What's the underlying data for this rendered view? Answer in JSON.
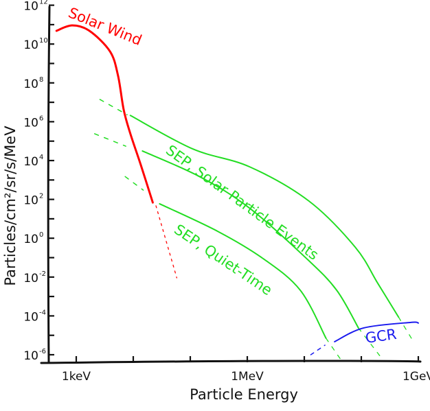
{
  "chart_data": {
    "type": "line",
    "title": "",
    "xlabel": "Particle Energy",
    "ylabel": "Particles/cm²/sr/s/MeV",
    "xscale": "log",
    "yscale": "log",
    "x_unit": "MeV",
    "xlim": [
      0.00028,
      1100
    ],
    "ylim": [
      4e-07,
      1000000000000.0
    ],
    "grid": false,
    "legend": "none (curves labeled inline)",
    "x_ticks": [
      {
        "value": 0.001,
        "label": "1keV"
      },
      {
        "value": 0.01,
        "label": ""
      },
      {
        "value": 0.1,
        "label": ""
      },
      {
        "value": 1,
        "label": "1MeV"
      },
      {
        "value": 10,
        "label": ""
      },
      {
        "value": 100,
        "label": ""
      },
      {
        "value": 1000,
        "label": "1GeV"
      }
    ],
    "y_ticks": [
      {
        "exp": -6,
        "label": "10",
        "sup": "-6"
      },
      {
        "exp": -5,
        "label": "",
        "sup": ""
      },
      {
        "exp": -4,
        "label": "10",
        "sup": "-4"
      },
      {
        "exp": -3,
        "label": "",
        "sup": ""
      },
      {
        "exp": -2,
        "label": "10",
        "sup": "-2"
      },
      {
        "exp": -1,
        "label": "",
        "sup": ""
      },
      {
        "exp": 0,
        "label": "10",
        "sup": "0"
      },
      {
        "exp": 1,
        "label": "",
        "sup": ""
      },
      {
        "exp": 2,
        "label": "10",
        "sup": "2"
      },
      {
        "exp": 3,
        "label": "",
        "sup": ""
      },
      {
        "exp": 4,
        "label": "10",
        "sup": "4"
      },
      {
        "exp": 5,
        "label": "",
        "sup": ""
      },
      {
        "exp": 6,
        "label": "10",
        "sup": "6"
      },
      {
        "exp": 7,
        "label": "",
        "sup": ""
      },
      {
        "exp": 8,
        "label": "10",
        "sup": "8"
      },
      {
        "exp": 9,
        "label": "",
        "sup": ""
      },
      {
        "exp": 10,
        "label": "10",
        "sup": "10"
      },
      {
        "exp": 11,
        "label": "",
        "sup": ""
      },
      {
        "exp": 12,
        "label": "10",
        "sup": "12"
      }
    ],
    "series": [
      {
        "name": "Solar Wind",
        "color": "#ff0000",
        "points": [
          [
            0.00045,
            48000000000.0
          ],
          [
            0.00085,
            91000000000.0
          ],
          [
            0.0017,
            48000000000.0
          ],
          [
            0.0039,
            4200000000.0
          ],
          [
            0.0054,
            240000000.0
          ],
          [
            0.0068,
            4100000.0
          ],
          [
            0.0089,
            240000.0
          ],
          [
            0.0135,
            6200.0
          ],
          [
            0.022,
            69
          ]
        ],
        "extrapolated": [
          [
            0.025,
            47
          ],
          [
            0.058,
            0.0091
          ]
        ]
      },
      {
        "name": "SEP, Solar Particle Events",
        "color": "#22dd22",
        "upper_bound": {
          "lead_in": [
            [
              0.0026,
              14000000.0
            ],
            [
              0.0078,
              2300000.0
            ]
          ],
          "points": [
            [
              0.0089,
              2100000.0
            ],
            [
              0.11,
              40000.0
            ],
            [
              1.09,
              4800.0
            ],
            [
              12,
              83
            ],
            [
              78,
              0.35
            ],
            [
              195,
              0.0047
            ],
            [
              450,
              8.7e-05
            ]
          ],
          "tail": [
            [
              450,
              8.7e-05
            ],
            [
              850,
              4e-06
            ]
          ]
        },
        "lower_bound": {
          "lead_in": [
            [
              0.0021,
              240000.0
            ],
            [
              0.0074,
              55000.0
            ]
          ],
          "points": [
            [
              0.0145,
              31000.0
            ],
            [
              0.145,
              1500.0
            ],
            [
              1.09,
              36
            ],
            [
              11,
              0.089
            ],
            [
              37,
              0.0021
            ],
            [
              89,
              2.4e-05
            ]
          ],
          "tail": [
            [
              89,
              2.4e-05
            ],
            [
              210,
              9e-07
            ]
          ]
        }
      },
      {
        "name": "SEP, Quiet-Time",
        "color": "#22dd22",
        "lead_in": [
          [
            0.0072,
            1500.0
          ],
          [
            0.015,
            300
          ]
        ],
        "points": [
          [
            0.029,
            59
          ],
          [
            0.3,
            2.3
          ],
          [
            1.9,
            0.089
          ],
          [
            8.5,
            0.0021
          ],
          [
            24,
            7.1e-06
          ]
        ],
        "tail": [
          [
            24,
            7.1e-06
          ],
          [
            43,
            6e-07
          ]
        ]
      },
      {
        "name": "GCR",
        "color": "#1a1aee",
        "lead_in": [
          [
            13,
            1e-06
          ],
          [
            23,
            3.1e-06
          ]
        ],
        "points": [
          [
            34,
            4.7e-06
          ],
          [
            110,
            2.4e-05
          ],
          [
            720,
            4.6e-05
          ],
          [
            1000,
            4.3e-05
          ]
        ]
      }
    ]
  }
}
